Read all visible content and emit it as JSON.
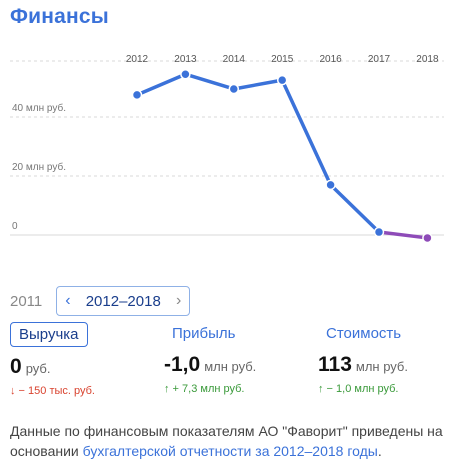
{
  "title": "Финансы",
  "chart_data": {
    "type": "line",
    "x": [
      "2012",
      "2013",
      "2014",
      "2015",
      "2016",
      "2017",
      "2018"
    ],
    "values": [
      47.5,
      54.5,
      49.5,
      52.5,
      17,
      1,
      -1
    ],
    "yticks": [
      {
        "value": 40,
        "label": "40 млн руб."
      },
      {
        "value": 20,
        "label": "20 млн руб."
      },
      {
        "value": 0,
        "label": "0"
      }
    ],
    "ylim": [
      0,
      60
    ],
    "grid": true,
    "colors": {
      "line": "#3b72d9",
      "last_segment": "#8e4bb8",
      "grid": "#d9d9d9"
    }
  },
  "year_selector": {
    "static_year": "2011",
    "range_label": "2012–2018",
    "prev_icon": "chevron-left-icon",
    "next_icon": "chevron-right-icon"
  },
  "metrics": [
    {
      "label": "Выручка",
      "value": "0",
      "unit": "руб.",
      "change": "↓ − 150 тыс. руб.",
      "direction": "down"
    },
    {
      "label": "Прибыль",
      "value": "-1,0",
      "unit": "млн руб.",
      "change": "↑ + 7,3 млн руб.",
      "direction": "up"
    },
    {
      "label": "Стоимость",
      "value": "113",
      "unit": "млн руб.",
      "change": "↑ − 1,0 млн руб.",
      "direction": "up"
    }
  ],
  "note": {
    "text": "Данные по финансовым показателям АО \"Фаворит\" приведены на основании ",
    "link": "бухгалтерской отчетности за 2012–2018 годы",
    "end": "."
  }
}
